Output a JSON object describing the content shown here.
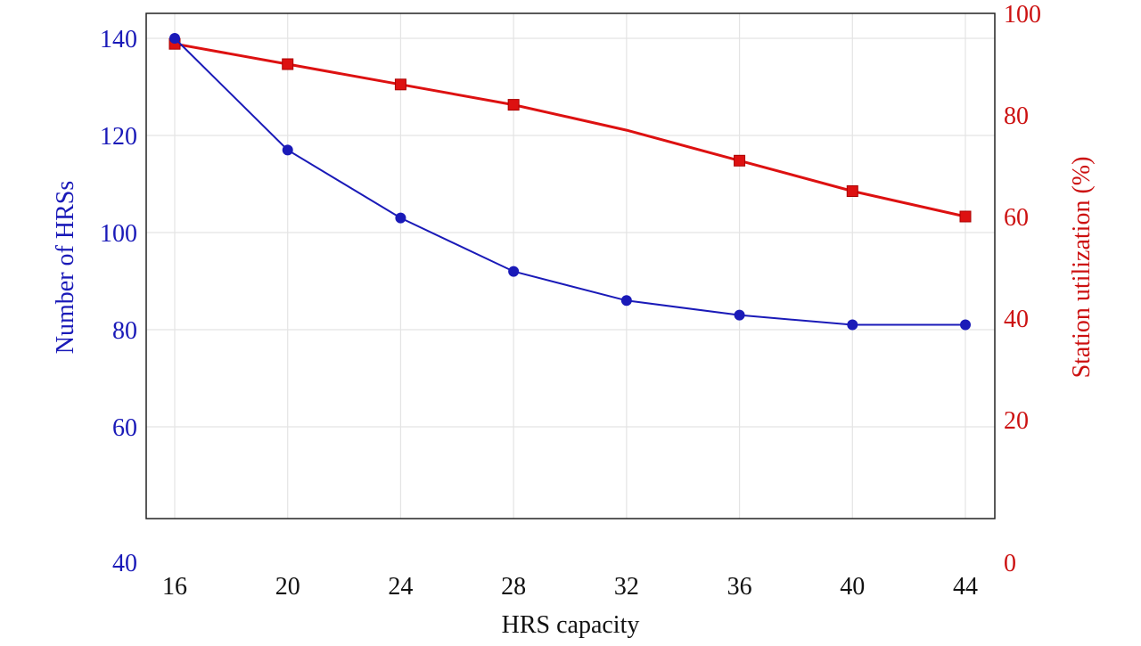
{
  "chart_data": {
    "type": "line",
    "xlabel": "HRS capacity",
    "ylabel_left": "Number of HRSs",
    "ylabel_right": "Station utilization (%)",
    "x": [
      16,
      20,
      24,
      28,
      32,
      36,
      40,
      44
    ],
    "x_ticks": [
      "16",
      "20",
      "24",
      "28",
      "32",
      "36",
      "40",
      "44"
    ],
    "y_left_ticks": [
      "40",
      "60",
      "80",
      "100",
      "120",
      "140"
    ],
    "y_right_ticks": [
      "0",
      "20",
      "40",
      "60",
      "80",
      "100"
    ],
    "ylim_left": [
      41,
      145
    ],
    "ylim_right": [
      0,
      100
    ],
    "grid": true,
    "series": [
      {
        "axis": "left",
        "color": "#1a1ab8",
        "marker": "circle",
        "values": [
          140,
          117,
          103,
          92,
          86,
          83,
          81,
          81
        ]
      },
      {
        "axis": "right",
        "color": "#dd1111",
        "marker": "square",
        "values": [
          94,
          90,
          86,
          82,
          77,
          71,
          65,
          60
        ],
        "unmarked_x": [
          32
        ]
      }
    ],
    "colors": {
      "left_axis": "#1a1ab8",
      "right_axis": "#cc1111",
      "grid": "#e4e4e4"
    }
  }
}
